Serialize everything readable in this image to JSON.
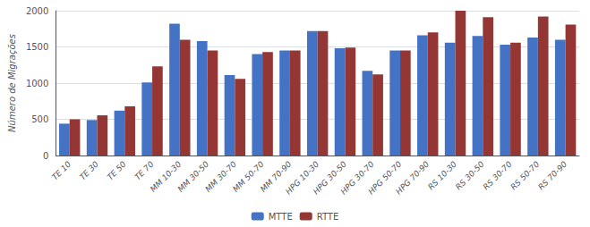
{
  "chart_data": {
    "type": "bar",
    "ylabel": "Número de Migrações",
    "categories": [
      "TE 10",
      "TE 30",
      "TE 50",
      "TE 70",
      "MM 10-30",
      "MM 30-50",
      "MM 30-70",
      "MM 50-70",
      "MM 70-90",
      "HPG 10-30",
      "HPG 30-50",
      "HPG 30-70",
      "HPG 50-70",
      "HPG 70-90",
      "RS 10-30",
      "RS 30-50",
      "RS 30-70",
      "RS 50-70",
      "RS 70-90"
    ],
    "series": [
      {
        "name": "MTTE",
        "color": "#4472C4",
        "values": [
          440,
          490,
          620,
          1010,
          1820,
          1580,
          1110,
          1400,
          1450,
          1720,
          1480,
          1170,
          1450,
          1660,
          1560,
          1650,
          1530,
          1630,
          1600
        ]
      },
      {
        "name": "RTTE",
        "color": "#943634",
        "values": [
          500,
          555,
          680,
          1230,
          1600,
          1450,
          1060,
          1430,
          1450,
          1720,
          1490,
          1120,
          1450,
          1700,
          2000,
          1910,
          1560,
          1920,
          1810
        ]
      }
    ],
    "ylim": [
      0,
      2000
    ],
    "yticks": [
      0,
      500,
      1000,
      1500,
      2000
    ],
    "grid": true,
    "legend": "bottom"
  }
}
